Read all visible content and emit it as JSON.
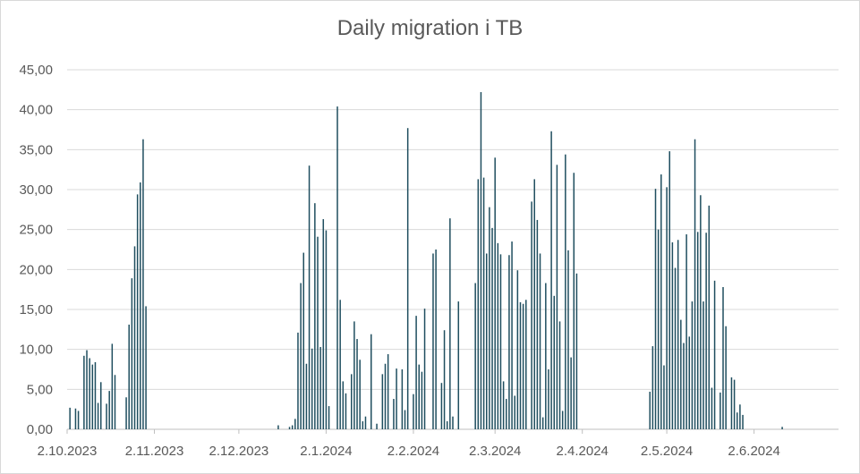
{
  "chart_data": {
    "type": "bar",
    "title": "Daily migration i TB",
    "xlabel": "",
    "ylabel": "",
    "ylim": [
      0,
      45
    ],
    "y_ticks": [
      "0,00",
      "5,00",
      "10,00",
      "15,00",
      "20,00",
      "25,00",
      "30,00",
      "35,00",
      "40,00",
      "45,00"
    ],
    "x_range": [
      "2023-10-02",
      "2024-07-02"
    ],
    "x_ticks": [
      {
        "date": "2023-10-02",
        "label": "2.10.2023"
      },
      {
        "date": "2023-11-02",
        "label": "2.11.2023"
      },
      {
        "date": "2023-12-02",
        "label": "2.12.2023"
      },
      {
        "date": "2024-01-02",
        "label": "2.1.2024"
      },
      {
        "date": "2024-02-02",
        "label": "2.2.2024"
      },
      {
        "date": "2024-03-02",
        "label": "2.3.2024"
      },
      {
        "date": "2024-04-02",
        "label": "2.4.2024"
      },
      {
        "date": "2024-05-02",
        "label": "2.5.2024"
      },
      {
        "date": "2024-06-02",
        "label": "2.6.2024"
      }
    ],
    "grid": true,
    "legend": "none",
    "bar_color": "#1f4e5f",
    "points": [
      [
        "2023-10-03",
        2.7
      ],
      [
        "2023-10-05",
        2.6
      ],
      [
        "2023-10-06",
        2.3
      ],
      [
        "2023-10-08",
        9.2
      ],
      [
        "2023-10-09",
        9.9
      ],
      [
        "2023-10-10",
        8.9
      ],
      [
        "2023-10-11",
        8.1
      ],
      [
        "2023-10-12",
        8.4
      ],
      [
        "2023-10-13",
        3.3
      ],
      [
        "2023-10-14",
        5.9
      ],
      [
        "2023-10-16",
        3.2
      ],
      [
        "2023-10-17",
        4.8
      ],
      [
        "2023-10-18",
        10.7
      ],
      [
        "2023-10-19",
        6.8
      ],
      [
        "2023-10-23",
        4.0
      ],
      [
        "2023-10-24",
        13.1
      ],
      [
        "2023-10-25",
        18.9
      ],
      [
        "2023-10-26",
        22.9
      ],
      [
        "2023-10-27",
        29.4
      ],
      [
        "2023-10-28",
        30.9
      ],
      [
        "2023-10-29",
        36.3
      ],
      [
        "2023-10-30",
        15.4
      ],
      [
        "2023-12-16",
        0.5
      ],
      [
        "2023-12-20",
        0.3
      ],
      [
        "2023-12-21",
        0.5
      ],
      [
        "2023-12-22",
        1.3
      ],
      [
        "2023-12-23",
        12.1
      ],
      [
        "2023-12-24",
        18.3
      ],
      [
        "2023-12-25",
        22.1
      ],
      [
        "2023-12-26",
        8.2
      ],
      [
        "2023-12-27",
        33.0
      ],
      [
        "2023-12-28",
        10.1
      ],
      [
        "2023-12-29",
        28.3
      ],
      [
        "2023-12-30",
        24.1
      ],
      [
        "2023-12-31",
        10.3
      ],
      [
        "2024-01-01",
        26.3
      ],
      [
        "2024-01-02",
        24.9
      ],
      [
        "2024-01-03",
        2.9
      ],
      [
        "2024-01-06",
        40.4
      ],
      [
        "2024-01-07",
        16.2
      ],
      [
        "2024-01-08",
        6.0
      ],
      [
        "2024-01-09",
        4.5
      ],
      [
        "2024-01-11",
        6.9
      ],
      [
        "2024-01-12",
        13.5
      ],
      [
        "2024-01-13",
        11.3
      ],
      [
        "2024-01-14",
        8.7
      ],
      [
        "2024-01-15",
        1.0
      ],
      [
        "2024-01-16",
        1.6
      ],
      [
        "2024-01-18",
        11.9
      ],
      [
        "2024-01-20",
        0.7
      ],
      [
        "2024-01-22",
        6.9
      ],
      [
        "2024-01-23",
        8.2
      ],
      [
        "2024-01-24",
        9.4
      ],
      [
        "2024-01-26",
        3.8
      ],
      [
        "2024-01-27",
        7.6
      ],
      [
        "2024-01-29",
        7.5
      ],
      [
        "2024-01-30",
        2.4
      ],
      [
        "2024-01-31",
        37.7
      ],
      [
        "2024-02-02",
        4.4
      ],
      [
        "2024-02-03",
        14.2
      ],
      [
        "2024-02-04",
        8.1
      ],
      [
        "2024-02-05",
        7.2
      ],
      [
        "2024-02-06",
        15.1
      ],
      [
        "2024-02-09",
        22.0
      ],
      [
        "2024-02-10",
        22.5
      ],
      [
        "2024-02-12",
        5.8
      ],
      [
        "2024-02-13",
        12.4
      ],
      [
        "2024-02-14",
        1.0
      ],
      [
        "2024-02-15",
        26.4
      ],
      [
        "2024-02-16",
        1.6
      ],
      [
        "2024-02-18",
        16.0
      ],
      [
        "2024-02-24",
        18.3
      ],
      [
        "2024-02-25",
        31.3
      ],
      [
        "2024-02-26",
        42.2
      ],
      [
        "2024-02-27",
        31.5
      ],
      [
        "2024-02-28",
        22.0
      ],
      [
        "2024-02-29",
        27.8
      ],
      [
        "2024-03-01",
        25.2
      ],
      [
        "2024-03-02",
        34.0
      ],
      [
        "2024-03-03",
        23.3
      ],
      [
        "2024-03-04",
        21.9
      ],
      [
        "2024-03-05",
        6.0
      ],
      [
        "2024-03-06",
        3.8
      ],
      [
        "2024-03-07",
        21.8
      ],
      [
        "2024-03-08",
        23.5
      ],
      [
        "2024-03-09",
        4.2
      ],
      [
        "2024-03-10",
        19.9
      ],
      [
        "2024-03-11",
        15.9
      ],
      [
        "2024-03-12",
        15.7
      ],
      [
        "2024-03-13",
        16.2
      ],
      [
        "2024-03-15",
        28.5
      ],
      [
        "2024-03-16",
        31.3
      ],
      [
        "2024-03-17",
        26.2
      ],
      [
        "2024-03-18",
        22.0
      ],
      [
        "2024-03-19",
        1.5
      ],
      [
        "2024-03-20",
        18.3
      ],
      [
        "2024-03-21",
        7.5
      ],
      [
        "2024-03-22",
        37.3
      ],
      [
        "2024-03-23",
        16.7
      ],
      [
        "2024-03-24",
        33.1
      ],
      [
        "2024-03-25",
        13.5
      ],
      [
        "2024-03-26",
        2.3
      ],
      [
        "2024-03-27",
        34.4
      ],
      [
        "2024-03-28",
        22.4
      ],
      [
        "2024-03-29",
        9.0
      ],
      [
        "2024-03-30",
        32.1
      ],
      [
        "2024-03-31",
        19.5
      ],
      [
        "2024-04-26",
        4.7
      ],
      [
        "2024-04-27",
        10.4
      ],
      [
        "2024-04-28",
        30.1
      ],
      [
        "2024-04-29",
        25.0
      ],
      [
        "2024-04-30",
        31.9
      ],
      [
        "2024-05-01",
        8.0
      ],
      [
        "2024-05-02",
        30.3
      ],
      [
        "2024-05-03",
        34.8
      ],
      [
        "2024-05-04",
        23.4
      ],
      [
        "2024-05-05",
        20.2
      ],
      [
        "2024-05-06",
        23.7
      ],
      [
        "2024-05-07",
        13.7
      ],
      [
        "2024-05-08",
        10.8
      ],
      [
        "2024-05-09",
        24.4
      ],
      [
        "2024-05-10",
        11.6
      ],
      [
        "2024-05-11",
        16.0
      ],
      [
        "2024-05-12",
        36.3
      ],
      [
        "2024-05-13",
        24.7
      ],
      [
        "2024-05-14",
        29.3
      ],
      [
        "2024-05-15",
        16.0
      ],
      [
        "2024-05-16",
        24.6
      ],
      [
        "2024-05-17",
        28.0
      ],
      [
        "2024-05-18",
        5.2
      ],
      [
        "2024-05-19",
        18.6
      ],
      [
        "2024-05-21",
        4.6
      ],
      [
        "2024-05-22",
        17.8
      ],
      [
        "2024-05-23",
        12.9
      ],
      [
        "2024-05-25",
        6.5
      ],
      [
        "2024-05-26",
        6.2
      ],
      [
        "2024-05-27",
        2.1
      ],
      [
        "2024-05-28",
        3.1
      ],
      [
        "2024-05-29",
        1.8
      ],
      [
        "2024-06-12",
        0.3
      ]
    ]
  }
}
